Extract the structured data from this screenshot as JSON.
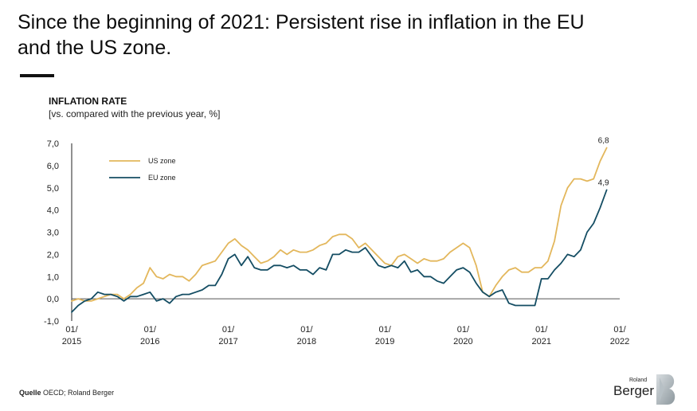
{
  "headline": "Since the beginning of 2021: Persistent rise in inflation in the EU and the US zone.",
  "chart_data": {
    "type": "line",
    "title": "INFLATION RATE",
    "subtitle": "[vs. compared with the previous year, %]",
    "ylim": [
      -1.0,
      7.0
    ],
    "yticks": [
      -1.0,
      0.0,
      1.0,
      2.0,
      3.0,
      4.0,
      5.0,
      6.0,
      7.0
    ],
    "ytick_labels": [
      "-1,0",
      "0,0",
      "1,0",
      "2,0",
      "3,0",
      "4,0",
      "5,0",
      "6,0",
      "7,0"
    ],
    "xlim": [
      0,
      84
    ],
    "xticks": [
      0,
      12,
      24,
      36,
      48,
      60,
      72,
      84
    ],
    "xtick_labels": [
      [
        "01/",
        "2015"
      ],
      [
        "01/",
        "2016"
      ],
      [
        "01/",
        "2017"
      ],
      [
        "01/",
        "2018"
      ],
      [
        "01/",
        "2019"
      ],
      [
        "01/",
        "2020"
      ],
      [
        "01/",
        "2021"
      ],
      [
        "01/",
        "2022"
      ]
    ],
    "legend_position": "top-left",
    "series": [
      {
        "name": "US zone",
        "color": "#e3b75c",
        "end_label": "6,8",
        "values": [
          -0.1,
          0.0,
          -0.1,
          -0.1,
          0.0,
          0.1,
          0.2,
          0.2,
          0.0,
          0.2,
          0.5,
          0.7,
          1.4,
          1.0,
          0.9,
          1.1,
          1.0,
          1.0,
          0.8,
          1.1,
          1.5,
          1.6,
          1.7,
          2.1,
          2.5,
          2.7,
          2.4,
          2.2,
          1.9,
          1.6,
          1.7,
          1.9,
          2.2,
          2.0,
          2.2,
          2.1,
          2.1,
          2.2,
          2.4,
          2.5,
          2.8,
          2.9,
          2.9,
          2.7,
          2.3,
          2.5,
          2.2,
          1.9,
          1.6,
          1.5,
          1.9,
          2.0,
          1.8,
          1.6,
          1.8,
          1.7,
          1.7,
          1.8,
          2.1,
          2.3,
          2.5,
          2.3,
          1.5,
          0.3,
          0.1,
          0.6,
          1.0,
          1.3,
          1.4,
          1.2,
          1.2,
          1.4,
          1.4,
          1.7,
          2.6,
          4.2,
          5.0,
          5.4,
          5.4,
          5.3,
          5.4,
          6.2,
          6.8
        ]
      },
      {
        "name": "EU zone",
        "color": "#144d63",
        "end_label": "4,9",
        "values": [
          -0.6,
          -0.3,
          -0.1,
          0.0,
          0.3,
          0.2,
          0.2,
          0.1,
          -0.1,
          0.1,
          0.1,
          0.2,
          0.3,
          -0.1,
          0.0,
          -0.2,
          0.1,
          0.2,
          0.2,
          0.3,
          0.4,
          0.6,
          0.6,
          1.1,
          1.8,
          2.0,
          1.5,
          1.9,
          1.4,
          1.3,
          1.3,
          1.5,
          1.5,
          1.4,
          1.5,
          1.3,
          1.3,
          1.1,
          1.4,
          1.3,
          2.0,
          2.0,
          2.2,
          2.1,
          2.1,
          2.3,
          1.9,
          1.5,
          1.4,
          1.5,
          1.4,
          1.7,
          1.2,
          1.3,
          1.0,
          1.0,
          0.8,
          0.7,
          1.0,
          1.3,
          1.4,
          1.2,
          0.7,
          0.3,
          0.1,
          0.3,
          0.4,
          -0.2,
          -0.3,
          -0.3,
          -0.3,
          -0.3,
          0.9,
          0.9,
          1.3,
          1.6,
          2.0,
          1.9,
          2.2,
          3.0,
          3.4,
          4.1,
          4.9
        ]
      }
    ]
  },
  "source": {
    "label": "Quelle",
    "text": "OECD; Roland Berger"
  },
  "logo": {
    "small": "Roland",
    "big": "Berger"
  }
}
